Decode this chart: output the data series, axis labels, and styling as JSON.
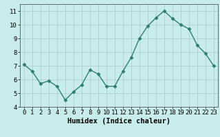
{
  "x": [
    0,
    1,
    2,
    3,
    4,
    5,
    6,
    7,
    8,
    9,
    10,
    11,
    12,
    13,
    14,
    15,
    16,
    17,
    18,
    19,
    20,
    21,
    22,
    23
  ],
  "y": [
    7.1,
    6.6,
    5.7,
    5.9,
    5.5,
    4.5,
    5.1,
    5.6,
    6.7,
    6.4,
    5.5,
    5.5,
    6.6,
    7.6,
    9.0,
    9.9,
    10.5,
    11.0,
    10.45,
    10.0,
    9.7,
    8.5,
    7.9,
    7.0
  ],
  "xlabel": "Humidex (Indice chaleur)",
  "line_color": "#2e7d6e",
  "bg_color": "#c8ecea",
  "grid_color": "#a8ccc8",
  "xlim": [
    -0.5,
    23.5
  ],
  "ylim": [
    4,
    11.5
  ],
  "yticks": [
    4,
    5,
    6,
    7,
    8,
    9,
    10,
    11
  ],
  "xticks": [
    0,
    1,
    2,
    3,
    4,
    5,
    6,
    7,
    8,
    9,
    10,
    11,
    12,
    13,
    14,
    15,
    16,
    17,
    18,
    19,
    20,
    21,
    22,
    23
  ],
  "markersize": 2.5,
  "linewidth": 1.0,
  "tick_fontsize": 6.5,
  "xlabel_fontsize": 7.5
}
